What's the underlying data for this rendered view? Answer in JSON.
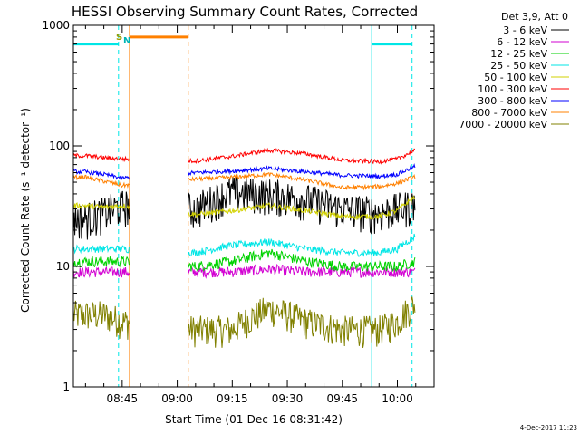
{
  "chart_data": {
    "type": "line",
    "title": "HESSI Observing Summary Count Rates, Corrected",
    "xlabel": "Start Time (01-Dec-16 08:31:42)",
    "ylabel": "Corrected Count Rate (s⁻¹ detector⁻¹)",
    "y_scale": "log",
    "ylim": [
      1,
      1000
    ],
    "y_ticks": [
      1,
      10,
      100,
      1000
    ],
    "y_tick_labels": [
      "1",
      "10",
      "100",
      "1000"
    ],
    "x_ticks": [
      "08:45",
      "09:00",
      "09:15",
      "09:30",
      "09:45",
      "10:00"
    ],
    "grid": false,
    "legend_header": "Det 3,9, Att 0",
    "legend_position": "top-right, outside plot",
    "timestamp": "4-Dec-2017 11:23",
    "flag_labels": [
      "S",
      "N"
    ],
    "colors": {
      "3 - 6 keV": "#000000",
      "6 - 12 keV": "#d200d2",
      "12 - 25 keV": "#00d200",
      "25 - 50 keV": "#00e6e6",
      "50 - 100 keV": "#d2d200",
      "100 - 300 keV": "#ff0000",
      "300 - 800 keV": "#0000ff",
      "800 - 7000 keV": "#ff8000",
      "7000 - 20000 keV": "#808000"
    },
    "note": "data gap between approx 08:47 and 09:03",
    "series": [
      {
        "name": "3 - 6 keV",
        "x": [
          "08:35",
          "08:40",
          "08:45",
          "09:05",
          "09:15",
          "09:25",
          "09:35",
          "09:45",
          "09:55",
          "10:00",
          "10:05"
        ],
        "y": [
          25,
          28,
          32,
          30,
          42,
          40,
          36,
          30,
          28,
          30,
          33
        ]
      },
      {
        "name": "6 - 12 keV",
        "x": [
          "08:35",
          "08:40",
          "08:45",
          "09:05",
          "09:15",
          "09:25",
          "09:35",
          "09:45",
          "09:55",
          "10:00",
          "10:05"
        ],
        "y": [
          9,
          9,
          9,
          9,
          9,
          9.5,
          9,
          9,
          9,
          9,
          9
        ]
      },
      {
        "name": "12 - 25 keV",
        "x": [
          "08:35",
          "08:40",
          "08:45",
          "09:05",
          "09:15",
          "09:25",
          "09:35",
          "09:45",
          "09:55",
          "10:00",
          "10:05"
        ],
        "y": [
          11,
          11,
          11,
          10,
          11,
          13,
          11,
          10,
          10,
          10,
          11
        ]
      },
      {
        "name": "25 - 50 keV",
        "x": [
          "08:35",
          "08:40",
          "08:45",
          "09:05",
          "09:15",
          "09:25",
          "09:35",
          "09:45",
          "09:55",
          "10:00",
          "10:05"
        ],
        "y": [
          14,
          14,
          14,
          13,
          15,
          16,
          14,
          13,
          13,
          14,
          18
        ]
      },
      {
        "name": "50 - 100 keV",
        "x": [
          "08:35",
          "08:40",
          "08:45",
          "09:05",
          "09:15",
          "09:25",
          "09:35",
          "09:45",
          "09:55",
          "10:00",
          "10:05"
        ],
        "y": [
          32,
          31,
          32,
          27,
          29,
          32,
          29,
          26,
          26,
          29,
          38
        ]
      },
      {
        "name": "100 - 300 keV",
        "x": [
          "08:35",
          "08:40",
          "08:45",
          "09:05",
          "09:15",
          "09:25",
          "09:35",
          "09:45",
          "09:55",
          "10:00",
          "10:05"
        ],
        "y": [
          83,
          80,
          78,
          75,
          82,
          92,
          86,
          76,
          74,
          78,
          92
        ]
      },
      {
        "name": "300 - 800 keV",
        "x": [
          "08:35",
          "08:40",
          "08:45",
          "09:05",
          "09:15",
          "09:25",
          "09:35",
          "09:45",
          "09:55",
          "10:00",
          "10:05"
        ],
        "y": [
          61,
          58,
          54,
          60,
          62,
          65,
          61,
          57,
          56,
          58,
          68
        ]
      },
      {
        "name": "800 - 7000 keV",
        "x": [
          "08:35",
          "08:40",
          "08:45",
          "09:05",
          "09:15",
          "09:25",
          "09:35",
          "09:45",
          "09:55",
          "10:00",
          "10:05"
        ],
        "y": [
          55,
          51,
          47,
          53,
          55,
          58,
          52,
          45,
          46,
          49,
          56
        ]
      },
      {
        "name": "7000 - 20000 keV",
        "x": [
          "08:35",
          "08:40",
          "08:45",
          "09:05",
          "09:15",
          "09:25",
          "09:35",
          "09:45",
          "09:55",
          "10:00",
          "10:05"
        ],
        "y": [
          4,
          4,
          3.5,
          3,
          3,
          4.5,
          3.5,
          3,
          3,
          3.5,
          5
        ]
      }
    ],
    "overlays": {
      "cyan_bar": {
        "color": "#00e6e6",
        "value": 700,
        "segments": [
          [
            "08:31:42",
            "08:44"
          ],
          [
            "09:53",
            "10:04"
          ]
        ]
      },
      "orange_bar": {
        "color": "#ff8000",
        "value": 800,
        "segments": [
          [
            "08:47",
            "09:03"
          ]
        ]
      },
      "vlines": [
        {
          "t": "08:44",
          "color": "#00e6e6",
          "style": "dashed"
        },
        {
          "t": "08:47",
          "color": "#ff8000",
          "style": "solid"
        },
        {
          "t": "09:03",
          "color": "#ff8000",
          "style": "dashed"
        },
        {
          "t": "09:53",
          "color": "#00e6e6",
          "style": "solid"
        },
        {
          "t": "10:04",
          "color": "#00e6e6",
          "style": "dashed"
        }
      ]
    }
  }
}
